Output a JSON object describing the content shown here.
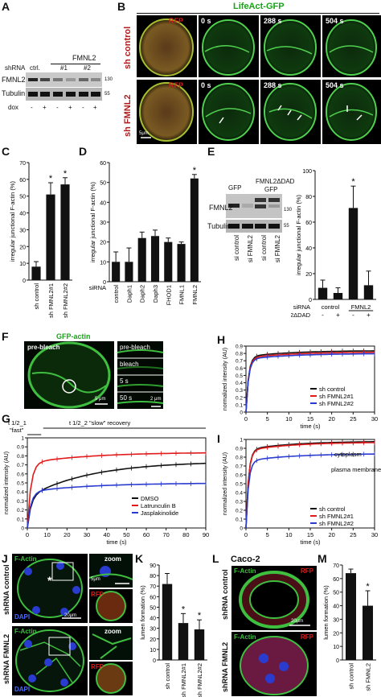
{
  "panels": {
    "A": "A",
    "B": "B",
    "C": "C",
    "D": "D",
    "E": "E",
    "F": "F",
    "G": "G",
    "H": "H",
    "I": "I",
    "J": "J",
    "K": "K",
    "L": "L",
    "M": "M"
  },
  "colors": {
    "green": "#1aa21a",
    "red": "#e11b1b",
    "darkred": "#b21c1c",
    "blue": "#2a3bd0",
    "black": "#111111",
    "purple": "#7a2a8a",
    "bar": "#111111"
  },
  "A": {
    "fmnl2_header": "FMNL2",
    "shrna_label": "shRNA",
    "ctrl": "ctrl.",
    "n1": "#1",
    "n2": "#2",
    "row1": "FMNL2",
    "row2": "Tubulin",
    "dox": "dox",
    "dox_vals": [
      "-",
      "+",
      "-",
      "+",
      "-",
      "+"
    ],
    "mw1": "130",
    "mw2": "55"
  },
  "B": {
    "title": "LifeAct-GFP",
    "rfp": "RFP",
    "times": [
      "0 s",
      "288 s",
      "504 s"
    ],
    "row_top": "sh control",
    "row_bottom": "sh FMNL2",
    "scale": "5μm"
  },
  "chart_data": [
    {
      "panel": "C",
      "type": "bar",
      "ylabel": "irregular junctional F-actin (%)",
      "ylim": [
        0,
        70
      ],
      "yticks": [
        0,
        10,
        20,
        30,
        40,
        50,
        60,
        70
      ],
      "categories": [
        "sh control",
        "sh FMNL2#1",
        "sh FMNL2#2"
      ],
      "values": [
        8,
        51,
        57
      ],
      "errors": [
        3,
        7,
        4
      ],
      "significance": [
        "",
        "*",
        "*"
      ]
    },
    {
      "panel": "D",
      "type": "bar",
      "ylabel": "irregular junctional F-actin (%)",
      "ylim": [
        0,
        60
      ],
      "yticks": [
        0,
        10,
        20,
        30,
        40,
        50,
        60
      ],
      "xaxis_label": "siRNA",
      "categories": [
        "control",
        "Daph1",
        "Daph2",
        "Daph3",
        "FHOD1",
        "FMNL1",
        "FMNL2"
      ],
      "values": [
        10,
        10,
        22,
        23,
        20,
        19,
        52
      ],
      "errors": [
        5,
        7,
        3,
        3,
        2,
        1,
        2
      ],
      "significance": [
        "",
        "",
        "",
        "",
        "",
        "",
        "*"
      ]
    },
    {
      "panel": "E",
      "type": "bar",
      "ylabel": "irregular junctional F-actin (%)",
      "ylim": [
        0,
        100
      ],
      "yticks": [
        0,
        20,
        40,
        60,
        80,
        100
      ],
      "categories": [
        "control -",
        "control +",
        "FMNL2 -",
        "FMNL2 +"
      ],
      "values": [
        9,
        5,
        71,
        11
      ],
      "errors": [
        6,
        4,
        17,
        11
      ],
      "significance": [
        "",
        "",
        "*",
        ""
      ],
      "row1_label": "siRNA",
      "row1_groups": [
        "control",
        "FMNL2"
      ],
      "row2_label": "FMNL2ΔDAD",
      "row2_vals": [
        "-",
        "+",
        "-",
        "+"
      ]
    },
    {
      "panel": "G",
      "type": "line",
      "xlabel": "time (s)",
      "ylabel": "normalized intensity (AU)",
      "xlim": [
        0,
        90
      ],
      "ylim": [
        0,
        1.0
      ],
      "xticks": [
        0,
        10,
        20,
        30,
        40,
        50,
        60,
        70,
        80,
        90
      ],
      "yticks": [
        0,
        0.1,
        0.2,
        0.3,
        0.4,
        0.5,
        0.6,
        0.7,
        0.8,
        0.9,
        1.0
      ],
      "annotations": [
        "t 1/2_1",
        "\"fast\"",
        "t 1/2_2 \"slow\" recovery"
      ],
      "series": [
        {
          "name": "DMSO",
          "plateau": 0.74,
          "fast": 0.34,
          "color": "#111111"
        },
        {
          "name": "Latrunculin B",
          "plateau": 0.84,
          "fast": 0.72,
          "color": "#e11b1b"
        },
        {
          "name": "Jasplakinolide",
          "plateau": 0.5,
          "fast": 0.4,
          "color": "#2a3bd0"
        }
      ],
      "legend": "bottom-right"
    },
    {
      "panel": "H",
      "type": "line",
      "xlabel": "time (s)",
      "ylabel": "normalized intensity (AU)",
      "xlim": [
        0,
        30
      ],
      "ylim": [
        0,
        0.9
      ],
      "xticks": [
        0,
        5,
        10,
        15,
        20,
        25,
        30
      ],
      "yticks": [
        0,
        0.1,
        0.2,
        0.3,
        0.4,
        0.5,
        0.6,
        0.7,
        0.8,
        0.9
      ],
      "series": [
        {
          "name": "sh control",
          "plateau": 0.84,
          "color": "#111111"
        },
        {
          "name": "sh FMNL2#1",
          "plateau": 0.82,
          "color": "#e11b1b"
        },
        {
          "name": "sh FMNL2#2",
          "plateau": 0.8,
          "color": "#2a3bd0"
        }
      ],
      "legend": "bottom-right"
    },
    {
      "panel": "I",
      "type": "line",
      "xlabel": "time (s)",
      "ylabel": "normalized intensity (AU)",
      "xlim": [
        0,
        30
      ],
      "ylim": [
        0,
        1.0
      ],
      "xticks": [
        0,
        5,
        10,
        15,
        20,
        25,
        30
      ],
      "yticks": [
        0,
        0.1,
        0.2,
        0.3,
        0.4,
        0.5,
        0.6,
        0.7,
        0.8,
        0.9,
        1.0
      ],
      "labels": [
        "cytoplasm",
        "plasma membrane"
      ],
      "series": [
        {
          "name": "sh control",
          "plateau": 0.98,
          "color": "#111111"
        },
        {
          "name": "sh FMNL2#1",
          "plateau": 0.97,
          "color": "#e11b1b"
        },
        {
          "name": "sh FMNL2#2",
          "plateau": 0.84,
          "color": "#2a3bd0"
        }
      ],
      "legend": "bottom-right"
    },
    {
      "panel": "K",
      "type": "bar",
      "ylabel": "lumen formation (%)",
      "ylim": [
        0,
        90
      ],
      "yticks": [
        0,
        10,
        20,
        30,
        40,
        50,
        60,
        70,
        80,
        90
      ],
      "categories": [
        "sh control",
        "sh FMNL2#1",
        "sh FMNL2#2"
      ],
      "values": [
        72,
        35,
        29
      ],
      "errors": [
        10,
        9,
        9
      ],
      "significance": [
        "",
        "*",
        "*"
      ]
    },
    {
      "panel": "M",
      "type": "bar",
      "ylabel": "lumen formation (%)",
      "ylim": [
        0,
        70
      ],
      "yticks": [
        0,
        10,
        20,
        30,
        40,
        50,
        60,
        70
      ],
      "categories": [
        "sh control",
        "sh FMNL2"
      ],
      "values": [
        64,
        40
      ],
      "errors": [
        3,
        11
      ],
      "significance": [
        "",
        "*"
      ]
    }
  ],
  "E_blot": {
    "gfp": "GFP",
    "gfp2": "FMNL2ΔDAD",
    "gfp3": "GFP",
    "row1": "FMNL2",
    "row2": "Tubulin",
    "mw1": "130",
    "mw2": "55",
    "lanes": [
      "si control",
      "si FMNL2",
      "si control",
      "si FMNL2"
    ]
  },
  "F": {
    "title": "GFP-actin",
    "prebleach": "pre-bleach",
    "frames": [
      "pre-bleach",
      "bleach",
      "5 s",
      "50 s"
    ],
    "scale1": "5 μm",
    "scale2": "2 μm"
  },
  "J": {
    "factin": "F-Actin",
    "dapi": "DAPI",
    "zoom": "zoom",
    "rfp": "RFP",
    "scale": "20μm",
    "scale2": "5μm",
    "row_top": "shRNA control",
    "row_bottom": "shRNA FMNL2"
  },
  "L": {
    "title": "Caco-2",
    "factin": "F-Actin",
    "rfp": "RFP",
    "scale": "20μm",
    "row_top": "shRNA control",
    "row_bottom": "shRNA FMNL2"
  }
}
